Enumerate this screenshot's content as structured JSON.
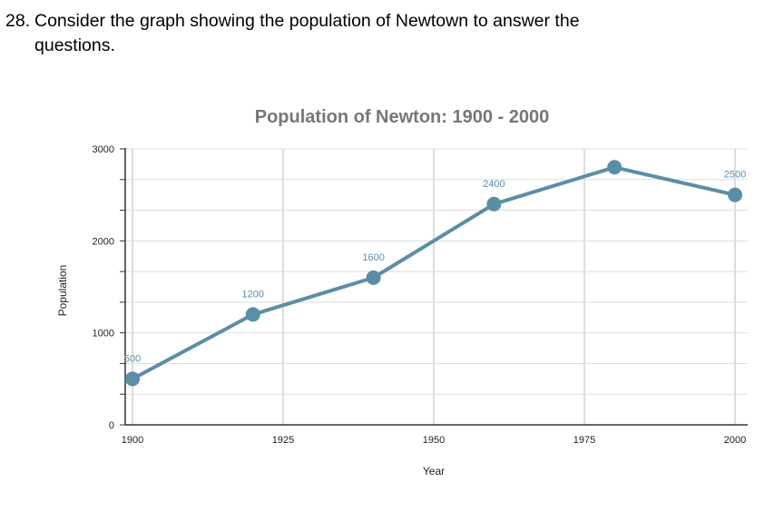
{
  "question": {
    "number": "28.",
    "text_line1": "Consider the graph showing the population of Newtown to answer the",
    "text_line2": "questions."
  },
  "colors": {
    "series": "#5b8ea6",
    "grid": "#dddddd",
    "title": "#777777"
  },
  "chart_data": {
    "type": "line",
    "title": "Population of Newton: 1900 - 2000",
    "xlabel": "Year",
    "ylabel": "Population",
    "xlim": [
      1900,
      2000
    ],
    "ylim": [
      0,
      3000
    ],
    "x_ticks": [
      1900,
      1925,
      1950,
      1975,
      2000
    ],
    "y_ticks": [
      0,
      1000,
      2000,
      3000
    ],
    "grid": true,
    "series": [
      {
        "x": [
          1900,
          1920,
          1940,
          1960,
          1980,
          2000
        ],
        "y": [
          500,
          1200,
          1600,
          2400,
          2800,
          2500
        ],
        "labels": [
          "500",
          "1200",
          "1600",
          "2400",
          "",
          "2500"
        ]
      }
    ]
  }
}
